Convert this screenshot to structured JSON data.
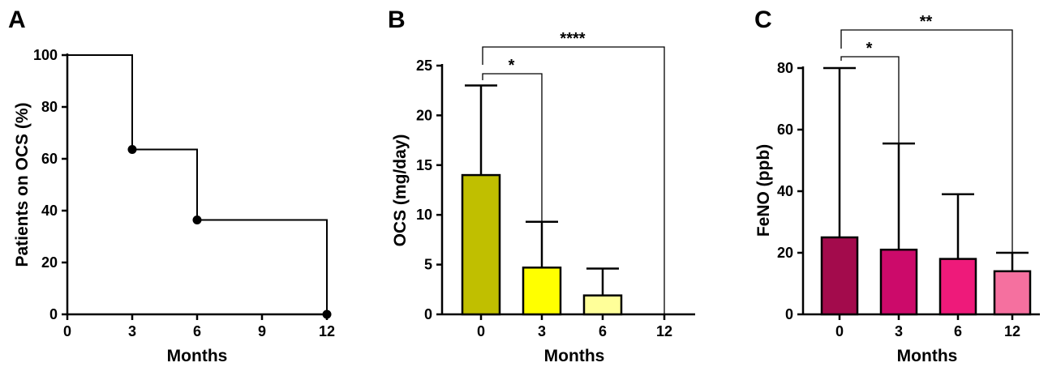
{
  "panels": [
    {
      "letter": "A",
      "xlabel": "Months",
      "ylabel": "Patients on OCS (%)"
    },
    {
      "letter": "B",
      "xlabel": "Months",
      "ylabel": "OCS (mg/day)"
    },
    {
      "letter": "C",
      "xlabel": "Months",
      "ylabel": "FeNO (ppb)"
    }
  ],
  "chart_data": [
    {
      "panel": "A",
      "type": "line",
      "step": true,
      "xlabel": "Months",
      "ylabel": "Patients on OCS (%)",
      "xlim": [
        0,
        12
      ],
      "ylim": [
        0,
        100
      ],
      "xticks": [
        0,
        3,
        6,
        9,
        12
      ],
      "yticks": [
        0,
        20,
        40,
        60,
        80,
        100
      ],
      "series": [
        {
          "x": [
            0,
            3,
            6,
            12
          ],
          "y": [
            100,
            63.6,
            36.4,
            0
          ],
          "markers_at": [
            3,
            6,
            12
          ]
        }
      ]
    },
    {
      "panel": "B",
      "type": "bar",
      "xlabel": "Months",
      "ylabel": "OCS (mg/day)",
      "categories": [
        "0",
        "3",
        "6",
        "12"
      ],
      "values": [
        14,
        4.7,
        1.9,
        0
      ],
      "error_upper": [
        23,
        9.3,
        4.6,
        0
      ],
      "colors": [
        "#c0bf00",
        "#ffff00",
        "#ffff99",
        "#ffffff"
      ],
      "ylim": [
        0,
        25
      ],
      "yticks": [
        0,
        5,
        10,
        15,
        20,
        25
      ],
      "significance": [
        {
          "from": "0",
          "to": "3",
          "label": "*"
        },
        {
          "from": "0",
          "to": "12",
          "label": "****"
        }
      ]
    },
    {
      "panel": "C",
      "type": "bar",
      "xlabel": "Months",
      "ylabel": "FeNO (ppb)",
      "categories": [
        "0",
        "3",
        "6",
        "12"
      ],
      "values": [
        25,
        21,
        18,
        14
      ],
      "error_upper": [
        80,
        55.5,
        39,
        20
      ],
      "colors": [
        "#a30b4c",
        "#cc0a6a",
        "#ee1a7a",
        "#f5709f"
      ],
      "ylim": [
        0,
        80
      ],
      "yticks": [
        0,
        20,
        40,
        60,
        80
      ],
      "significance": [
        {
          "from": "0",
          "to": "3",
          "label": "*"
        },
        {
          "from": "0",
          "to": "12",
          "label": "**"
        }
      ]
    }
  ]
}
